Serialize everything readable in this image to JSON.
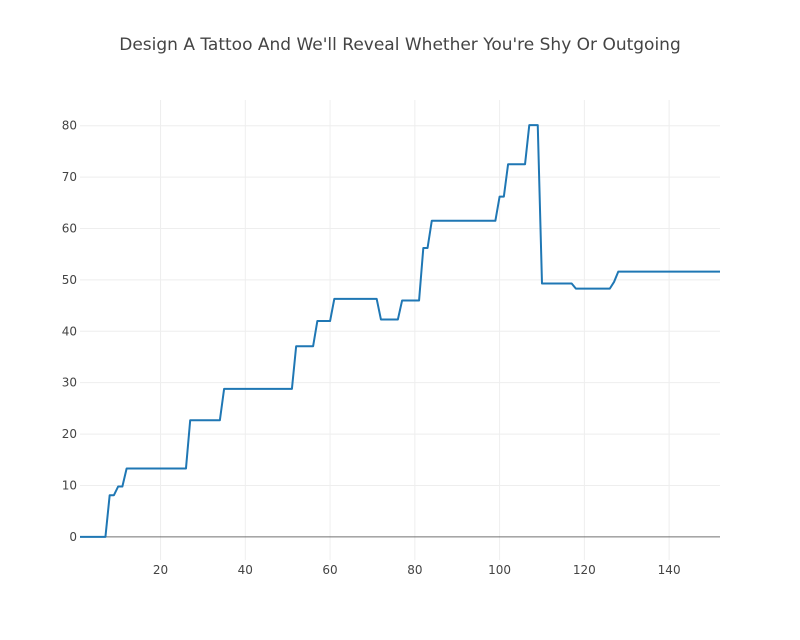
{
  "chart_data": {
    "type": "line",
    "title": "Design A Tattoo And We'll Reveal Whether You're Shy Or Outgoing",
    "xlabel": "",
    "ylabel": "",
    "xlim": [
      1,
      152
    ],
    "ylim": [
      -4.5,
      85
    ],
    "x_ticks": [
      20,
      40,
      60,
      80,
      100,
      120,
      140
    ],
    "y_ticks": [
      0,
      10,
      20,
      30,
      40,
      50,
      60,
      70,
      80
    ],
    "grid": true,
    "colors": {
      "line": "#1f77b4",
      "grid": "#eeeeee",
      "zeroline": "#444444",
      "text": "#444444"
    },
    "series": [
      {
        "x": [
          1,
          7,
          8,
          9,
          10,
          11,
          12,
          26,
          27,
          34,
          35,
          51,
          52,
          56,
          57,
          60,
          61,
          71,
          72,
          76,
          77,
          81,
          82,
          83,
          84,
          99,
          100,
          101,
          102,
          106,
          107,
          109,
          110,
          117,
          118,
          126,
          127,
          128,
          152
        ],
        "y": [
          0,
          0,
          8.1,
          8.1,
          9.8,
          9.8,
          13.3,
          13.3,
          22.7,
          22.7,
          28.8,
          28.8,
          37.1,
          37.1,
          42,
          42,
          46.3,
          46.3,
          42.3,
          42.3,
          46,
          46,
          56.2,
          56.2,
          61.5,
          61.5,
          66.2,
          66.2,
          72.5,
          72.5,
          80.1,
          80.1,
          49.3,
          49.3,
          48.3,
          48.3,
          49.6,
          51.6,
          51.6
        ]
      }
    ]
  }
}
